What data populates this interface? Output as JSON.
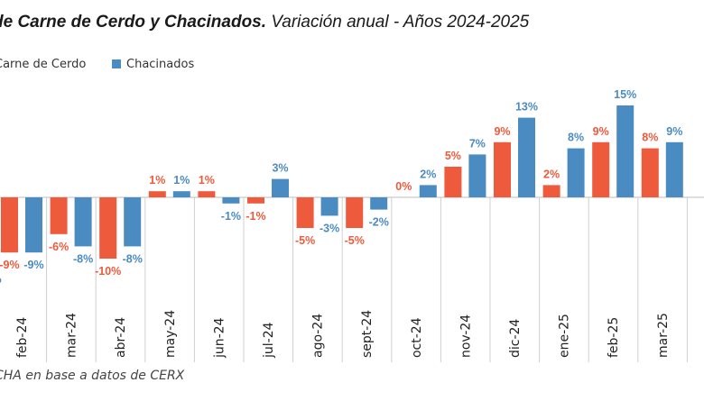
{
  "header": {
    "title_main": "de Carne de Cerdo y Chacinados.",
    "title_sub": "Variación anual - Años 2024-2025"
  },
  "footer": {
    "source": "CHA en base a datos de CERX"
  },
  "colors": {
    "carne": "#EE5A3C",
    "chacinados": "#4A8BC2"
  },
  "chart_data": {
    "type": "bar",
    "categories": [
      "feb-24",
      "mar-24",
      "abr-24",
      "may-24",
      "jun-24",
      "jul-24",
      "ago-24",
      "sept-24",
      "oct-24",
      "nov-24",
      "dic-24",
      "ene-25",
      "feb-25",
      "mar-25"
    ],
    "series": [
      {
        "name": "Carne de Cerdo",
        "values": [
          -9,
          -6,
          -10,
          1,
          1,
          -1,
          -5,
          -5,
          0,
          5,
          9,
          2,
          9,
          8
        ],
        "labels": [
          "-9%",
          "-6%",
          "-10%",
          "1%",
          "1%",
          "-1%",
          "-5%",
          "-5%",
          "0%",
          "5%",
          "9%",
          "2%",
          "9%",
          "8%"
        ]
      },
      {
        "name": "Chacinados",
        "values": [
          -9,
          -8,
          -8,
          1,
          -1,
          3,
          -3,
          -2,
          2,
          7,
          13,
          8,
          15,
          9
        ],
        "labels": [
          "-9%",
          "-8%",
          "-8%",
          "1%",
          "-1%",
          "3%",
          "-3%",
          "-2%",
          "2%",
          "7%",
          "13%",
          "8%",
          "15%",
          "9%"
        ]
      }
    ],
    "partial_left_label": "%",
    "legend": [
      "Carne de Cerdo",
      "Chacinados"
    ],
    "legend_position": "top-left",
    "grid": false
  }
}
